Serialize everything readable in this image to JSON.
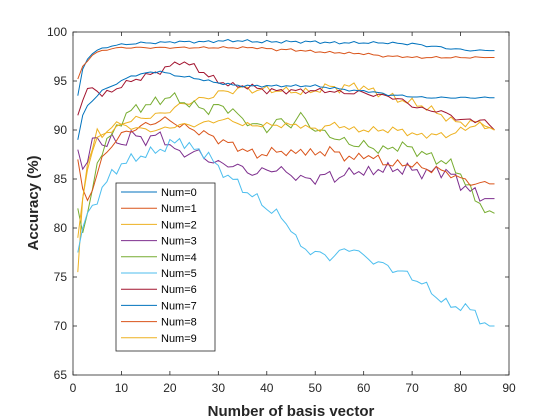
{
  "chart_data": {
    "type": "line",
    "title": "",
    "xlabel": "Number of basis vector",
    "ylabel": "Accuracy (%)",
    "xlim": [
      0,
      90
    ],
    "ylim": [
      65,
      100
    ],
    "xticks": [
      0,
      10,
      20,
      30,
      40,
      50,
      60,
      70,
      80,
      90
    ],
    "yticks": [
      65,
      70,
      75,
      80,
      85,
      90,
      95,
      100
    ],
    "grid": false,
    "legend_position": "lower-left",
    "anchor_x": [
      1,
      2,
      3,
      4,
      5,
      6,
      8,
      10,
      12,
      15,
      18,
      20,
      22,
      25,
      28,
      30,
      33,
      35,
      38,
      40,
      42,
      45,
      47,
      50,
      53,
      55,
      58,
      60,
      63,
      65,
      68,
      70,
      73,
      75,
      78,
      80,
      83,
      85,
      87
    ],
    "series": [
      {
        "name": "Num=0",
        "color": "#0072BD",
        "values": [
          93.5,
          96.2,
          97.3,
          97.8,
          98.1,
          98.3,
          98.6,
          98.7,
          98.8,
          98.9,
          98.9,
          99.0,
          99.0,
          99.0,
          99.0,
          99.1,
          99.1,
          99.1,
          99.0,
          99.0,
          99.0,
          99.0,
          99.0,
          99.0,
          98.9,
          98.9,
          98.9,
          98.9,
          98.9,
          98.9,
          98.8,
          98.8,
          98.6,
          98.5,
          98.3,
          98.2,
          98.1,
          98.1,
          98.1
        ]
      },
      {
        "name": "Num=1",
        "color": "#D95319",
        "values": [
          95.2,
          96.5,
          97.1,
          97.6,
          97.9,
          98.1,
          98.3,
          98.4,
          98.4,
          98.4,
          98.4,
          98.4,
          98.4,
          98.4,
          98.4,
          98.4,
          98.4,
          98.4,
          98.4,
          98.3,
          98.2,
          98.2,
          98.1,
          98.0,
          97.9,
          97.9,
          97.8,
          97.8,
          97.6,
          97.5,
          97.5,
          97.4,
          97.4,
          97.4,
          97.4,
          97.4,
          97.4,
          97.4,
          97.4
        ]
      },
      {
        "name": "Num=2",
        "color": "#EDB120",
        "values": [
          75.5,
          83.0,
          86.5,
          88.0,
          89.8,
          89.5,
          90.3,
          90.7,
          91.0,
          91.3,
          91.6,
          92.0,
          92.5,
          93.0,
          93.3,
          93.8,
          94.0,
          94.3,
          94.0,
          94.2,
          94.0,
          94.0,
          93.8,
          94.0,
          94.5,
          94.2,
          94.6,
          94.3,
          93.8,
          93.5,
          93.0,
          92.8,
          92.3,
          91.8,
          91.0,
          90.7,
          90.8,
          90.5,
          90.0
        ]
      },
      {
        "name": "Num=3",
        "color": "#7E2F8E",
        "values": [
          88.0,
          86.0,
          87.0,
          88.5,
          89.5,
          88.5,
          89.0,
          88.5,
          89.5,
          89.0,
          89.5,
          88.5,
          87.5,
          87.8,
          87.0,
          86.5,
          86.5,
          86.0,
          85.5,
          86.0,
          86.0,
          85.5,
          85.0,
          85.0,
          85.5,
          85.0,
          86.0,
          85.5,
          86.0,
          86.0,
          86.0,
          86.0,
          85.5,
          86.0,
          85.5,
          84.5,
          83.5,
          83.0,
          83.0
        ]
      },
      {
        "name": "Num=4",
        "color": "#77AC30",
        "values": [
          82.0,
          79.5,
          81.0,
          84.0,
          86.5,
          88.0,
          89.5,
          91.0,
          92.0,
          92.5,
          93.0,
          93.5,
          93.0,
          92.5,
          92.0,
          92.5,
          92.0,
          91.0,
          90.5,
          90.0,
          91.0,
          90.5,
          91.5,
          90.0,
          89.5,
          89.0,
          88.5,
          88.5,
          88.0,
          88.0,
          88.5,
          88.0,
          87.5,
          87.0,
          86.5,
          85.5,
          83.0,
          82.0,
          81.5
        ]
      },
      {
        "name": "Num=5",
        "color": "#4DBEEE",
        "values": [
          77.5,
          80.0,
          81.5,
          82.0,
          83.0,
          84.0,
          85.5,
          86.5,
          87.0,
          87.5,
          88.0,
          88.5,
          89.0,
          88.0,
          87.5,
          86.0,
          85.0,
          84.0,
          83.0,
          82.0,
          81.5,
          80.0,
          78.0,
          77.5,
          77.0,
          77.5,
          78.0,
          77.0,
          76.5,
          76.0,
          75.5,
          75.0,
          74.0,
          73.0,
          72.0,
          72.0,
          71.5,
          70.0,
          70.0
        ]
      },
      {
        "name": "Num=6",
        "color": "#A2142F",
        "values": [
          91.5,
          93.0,
          94.0,
          94.5,
          94.0,
          93.5,
          94.0,
          94.5,
          95.0,
          95.5,
          96.0,
          96.5,
          97.0,
          96.5,
          95.5,
          95.0,
          94.5,
          94.5,
          94.3,
          94.0,
          94.0,
          94.0,
          94.0,
          94.0,
          94.0,
          93.8,
          93.8,
          93.8,
          93.5,
          93.5,
          93.0,
          92.5,
          92.0,
          92.0,
          91.5,
          91.0,
          91.0,
          91.0,
          90.0
        ]
      },
      {
        "name": "Num=7",
        "color": "#0072BD",
        "values": [
          89.0,
          91.5,
          92.5,
          93.0,
          93.5,
          94.0,
          94.5,
          95.0,
          95.5,
          95.8,
          96.0,
          95.7,
          95.5,
          95.3,
          95.0,
          94.8,
          94.6,
          94.5,
          94.5,
          94.5,
          94.5,
          94.5,
          94.5,
          94.5,
          94.3,
          94.2,
          94.0,
          94.0,
          93.8,
          93.6,
          93.5,
          93.4,
          93.3,
          93.3,
          93.3,
          93.3,
          93.3,
          93.3,
          93.3
        ]
      },
      {
        "name": "Num=8",
        "color": "#D95319",
        "values": [
          87.0,
          84.0,
          83.0,
          84.0,
          85.5,
          87.0,
          88.5,
          89.5,
          90.0,
          90.5,
          91.0,
          91.0,
          90.5,
          90.0,
          89.5,
          89.0,
          88.5,
          88.0,
          87.5,
          87.5,
          88.0,
          87.5,
          88.0,
          87.5,
          88.0,
          87.5,
          87.0,
          87.5,
          87.0,
          86.5,
          86.5,
          86.5,
          86.0,
          86.0,
          85.5,
          85.0,
          84.5,
          84.5,
          84.5
        ]
      },
      {
        "name": "Num=9",
        "color": "#EDB120",
        "values": [
          79.0,
          83.0,
          86.0,
          88.0,
          89.0,
          89.5,
          90.0,
          90.5,
          90.3,
          90.0,
          90.0,
          90.3,
          90.5,
          90.5,
          90.8,
          91.0,
          91.0,
          90.5,
          90.5,
          90.5,
          90.5,
          90.5,
          90.5,
          90.0,
          90.5,
          90.5,
          90.0,
          90.0,
          90.0,
          90.0,
          90.0,
          89.5,
          89.5,
          89.5,
          89.5,
          90.0,
          90.5,
          90.5,
          90.0
        ]
      }
    ]
  }
}
